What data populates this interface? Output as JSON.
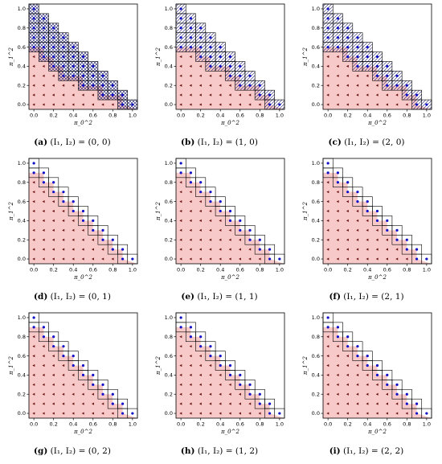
{
  "colors": {
    "region_fill": "#f7c9c9",
    "region_stroke": "#c9c9c9",
    "hatch": "#1a1a6a",
    "point_blue": "#1010c8",
    "point_red": "#6a1414",
    "axis": "#000000"
  },
  "chart_data": [
    {
      "type": "scatter",
      "tag": "(a)",
      "label": "(I_1, I_2) = (0, 0)",
      "xlabel": "π_0^2",
      "ylabel": "π_1^2",
      "xlim": [
        0,
        1
      ],
      "ylim": [
        0,
        1
      ],
      "xticks": [
        "0.0",
        "0.2",
        "0.4",
        "0.6",
        "0.8",
        "1.0"
      ],
      "yticks": [
        "0.0",
        "0.2",
        "0.4",
        "0.6",
        "0.8",
        "1.0"
      ],
      "boundary": [
        [
          0,
          0.6
        ],
        [
          0.1,
          0.6
        ],
        [
          0.1,
          0.5
        ],
        [
          0.2,
          0.5
        ],
        [
          0.2,
          0.4
        ],
        [
          0.3,
          0.4
        ],
        [
          0.3,
          0.3
        ],
        [
          0.4,
          0.3
        ],
        [
          0.4,
          0.3
        ],
        [
          0.5,
          0.3
        ],
        [
          0.5,
          0.2
        ],
        [
          0.6,
          0.2
        ],
        [
          0.6,
          0.2
        ],
        [
          0.7,
          0.2
        ],
        [
          0.7,
          0.1
        ],
        [
          0.8,
          0.1
        ],
        [
          0.8,
          0.1
        ],
        [
          0.9,
          0.1
        ],
        [
          0.9,
          0.0
        ]
      ],
      "hatch_style": "x",
      "single_column_grid": false
    },
    {
      "type": "scatter",
      "tag": "(b)",
      "label": "(I_1, I_2) = (1, 0)",
      "xlabel": "π_0^2",
      "ylabel": "π_1^2",
      "xlim": [
        0,
        1
      ],
      "ylim": [
        0,
        1
      ],
      "xticks": [
        "0.0",
        "0.2",
        "0.4",
        "0.6",
        "0.8",
        "1.0"
      ],
      "yticks": [
        "0.0",
        "0.2",
        "0.4",
        "0.6",
        "0.8",
        "1.0"
      ],
      "boundary": [
        [
          0,
          0.6
        ],
        [
          0.1,
          0.6
        ],
        [
          0.1,
          0.6
        ],
        [
          0.2,
          0.6
        ],
        [
          0.2,
          0.5
        ],
        [
          0.3,
          0.5
        ],
        [
          0.3,
          0.4
        ],
        [
          0.4,
          0.4
        ],
        [
          0.4,
          0.4
        ],
        [
          0.5,
          0.4
        ],
        [
          0.5,
          0.3
        ],
        [
          0.6,
          0.3
        ],
        [
          0.6,
          0.2
        ],
        [
          0.7,
          0.2
        ],
        [
          0.7,
          0.2
        ],
        [
          0.8,
          0.2
        ],
        [
          0.8,
          0.1
        ],
        [
          0.9,
          0.1
        ],
        [
          0.9,
          0.0
        ]
      ],
      "hatch_style": "/",
      "single_column_grid": false
    },
    {
      "type": "scatter",
      "tag": "(c)",
      "label": "(I_1, I_2) = (2, 0)",
      "xlabel": "π_0^2",
      "ylabel": "π_1^2",
      "xlim": [
        0,
        1
      ],
      "ylim": [
        0,
        1
      ],
      "xticks": [
        "0.0",
        "0.2",
        "0.4",
        "0.6",
        "0.8",
        "1.0"
      ],
      "yticks": [
        "0.0",
        "0.2",
        "0.4",
        "0.6",
        "0.8",
        "1.0"
      ],
      "boundary": [
        [
          0,
          0.6
        ],
        [
          0.1,
          0.6
        ],
        [
          0.1,
          0.6
        ],
        [
          0.2,
          0.6
        ],
        [
          0.2,
          0.5
        ],
        [
          0.3,
          0.5
        ],
        [
          0.3,
          0.4
        ],
        [
          0.4,
          0.4
        ],
        [
          0.4,
          0.4
        ],
        [
          0.5,
          0.4
        ],
        [
          0.5,
          0.3
        ],
        [
          0.6,
          0.3
        ],
        [
          0.6,
          0.2
        ],
        [
          0.7,
          0.2
        ],
        [
          0.7,
          0.2
        ],
        [
          0.8,
          0.2
        ],
        [
          0.8,
          0.1
        ],
        [
          0.9,
          0.1
        ],
        [
          0.9,
          0.0
        ]
      ],
      "hatch_style": "/",
      "single_column_grid": false
    },
    {
      "type": "scatter",
      "tag": "(d)",
      "label": "(I_1, I_2) = (0, 1)",
      "xlabel": "π_0^2",
      "ylabel": "π_1^2",
      "xlim": [
        0,
        1
      ],
      "ylim": [
        0,
        1
      ],
      "xticks": [
        "0.0",
        "0.2",
        "0.4",
        "0.6",
        "0.8",
        "1.0"
      ],
      "yticks": [
        "0.0",
        "0.2",
        "0.4",
        "0.6",
        "0.8",
        "1.0"
      ],
      "boundary": [
        [
          0,
          0.9
        ],
        [
          0.1,
          0.9
        ],
        [
          0.1,
          0.8
        ],
        [
          0.2,
          0.8
        ],
        [
          0.2,
          0.7
        ],
        [
          0.3,
          0.7
        ],
        [
          0.3,
          0.6
        ],
        [
          0.4,
          0.6
        ],
        [
          0.4,
          0.5
        ],
        [
          0.5,
          0.5
        ],
        [
          0.5,
          0.4
        ],
        [
          0.6,
          0.4
        ],
        [
          0.6,
          0.3
        ],
        [
          0.7,
          0.3
        ],
        [
          0.7,
          0.2
        ],
        [
          0.8,
          0.2
        ],
        [
          0.8,
          0.1
        ],
        [
          0.9,
          0.1
        ],
        [
          0.9,
          0.0
        ]
      ],
      "hatch_style": "none",
      "single_column_grid": false
    },
    {
      "type": "scatter",
      "tag": "(e)",
      "label": "(I_1, I_2) = (1, 1)",
      "xlabel": "π_0^2",
      "ylabel": "π_1^2",
      "xlim": [
        0,
        1
      ],
      "ylim": [
        0,
        1
      ],
      "xticks": [
        "0.0",
        "0.2",
        "0.4",
        "0.6",
        "0.8",
        "1.0"
      ],
      "yticks": [
        "0.0",
        "0.2",
        "0.4",
        "0.6",
        "0.8",
        "1.0"
      ],
      "boundary": [
        [
          0,
          0.9
        ],
        [
          0.1,
          0.9
        ],
        [
          0.1,
          0.8
        ],
        [
          0.2,
          0.8
        ],
        [
          0.2,
          0.7
        ],
        [
          0.3,
          0.7
        ],
        [
          0.3,
          0.6
        ],
        [
          0.4,
          0.6
        ],
        [
          0.4,
          0.5
        ],
        [
          0.5,
          0.5
        ],
        [
          0.5,
          0.4
        ],
        [
          0.6,
          0.4
        ],
        [
          0.6,
          0.3
        ],
        [
          0.7,
          0.3
        ],
        [
          0.7,
          0.2
        ],
        [
          0.8,
          0.2
        ],
        [
          0.8,
          0.1
        ],
        [
          0.9,
          0.1
        ],
        [
          0.9,
          0.0
        ]
      ],
      "hatch_style": "none",
      "single_column_grid": true
    },
    {
      "type": "scatter",
      "tag": "(f)",
      "label": "(I_1, I_2) = (2, 1)",
      "xlabel": "π_0^2",
      "ylabel": "π_1^2",
      "xlim": [
        0,
        1
      ],
      "ylim": [
        0,
        1
      ],
      "xticks": [
        "0.0",
        "0.2",
        "0.4",
        "0.6",
        "0.8",
        "1.0"
      ],
      "yticks": [
        "0.0",
        "0.2",
        "0.4",
        "0.6",
        "0.8",
        "1.0"
      ],
      "boundary": [
        [
          0,
          0.9
        ],
        [
          0.1,
          0.9
        ],
        [
          0.1,
          0.8
        ],
        [
          0.2,
          0.8
        ],
        [
          0.2,
          0.7
        ],
        [
          0.3,
          0.7
        ],
        [
          0.3,
          0.6
        ],
        [
          0.4,
          0.6
        ],
        [
          0.4,
          0.5
        ],
        [
          0.5,
          0.5
        ],
        [
          0.5,
          0.4
        ],
        [
          0.6,
          0.4
        ],
        [
          0.6,
          0.3
        ],
        [
          0.7,
          0.3
        ],
        [
          0.7,
          0.2
        ],
        [
          0.8,
          0.2
        ],
        [
          0.8,
          0.1
        ],
        [
          0.9,
          0.1
        ],
        [
          0.9,
          0.0
        ]
      ],
      "hatch_style": "none",
      "single_column_grid": false
    },
    {
      "type": "scatter",
      "tag": "(g)",
      "label": "(I_1, I_2) = (0, 2)",
      "xlabel": "π_0^2",
      "ylabel": "π_1^2",
      "xlim": [
        0,
        1
      ],
      "ylim": [
        0,
        1
      ],
      "xticks": [
        "0.0",
        "0.2",
        "0.4",
        "0.6",
        "0.8",
        "1.0"
      ],
      "yticks": [
        "0.0",
        "0.2",
        "0.4",
        "0.6",
        "0.8",
        "1.0"
      ],
      "boundary": [
        [
          0,
          0.9
        ],
        [
          0.1,
          0.9
        ],
        [
          0.1,
          0.8
        ],
        [
          0.2,
          0.8
        ],
        [
          0.2,
          0.7
        ],
        [
          0.3,
          0.7
        ],
        [
          0.3,
          0.6
        ],
        [
          0.4,
          0.6
        ],
        [
          0.4,
          0.5
        ],
        [
          0.5,
          0.5
        ],
        [
          0.5,
          0.4
        ],
        [
          0.6,
          0.4
        ],
        [
          0.6,
          0.3
        ],
        [
          0.7,
          0.3
        ],
        [
          0.7,
          0.2
        ],
        [
          0.8,
          0.2
        ],
        [
          0.8,
          0.1
        ],
        [
          0.9,
          0.1
        ],
        [
          0.9,
          0.0
        ]
      ],
      "hatch_style": "none",
      "single_column_grid": false
    },
    {
      "type": "scatter",
      "tag": "(h)",
      "label": "(I_1, I_2) = (1, 2)",
      "xlabel": "π_0^2",
      "ylabel": "π_1^2",
      "xlim": [
        0,
        1
      ],
      "ylim": [
        0,
        1
      ],
      "xticks": [
        "0.0",
        "0.2",
        "0.4",
        "0.6",
        "0.8",
        "1.0"
      ],
      "yticks": [
        "0.0",
        "0.2",
        "0.4",
        "0.6",
        "0.8",
        "1.0"
      ],
      "boundary": [
        [
          0,
          0.9
        ],
        [
          0.1,
          0.9
        ],
        [
          0.1,
          0.8
        ],
        [
          0.2,
          0.8
        ],
        [
          0.2,
          0.7
        ],
        [
          0.3,
          0.7
        ],
        [
          0.3,
          0.6
        ],
        [
          0.4,
          0.6
        ],
        [
          0.4,
          0.5
        ],
        [
          0.5,
          0.5
        ],
        [
          0.5,
          0.4
        ],
        [
          0.6,
          0.4
        ],
        [
          0.6,
          0.3
        ],
        [
          0.7,
          0.3
        ],
        [
          0.7,
          0.2
        ],
        [
          0.8,
          0.2
        ],
        [
          0.8,
          0.1
        ],
        [
          0.9,
          0.1
        ],
        [
          0.9,
          0.0
        ]
      ],
      "hatch_style": "none",
      "single_column_grid": false
    },
    {
      "type": "scatter",
      "tag": "(i)",
      "label": "(I_1, I_2) = (2, 2)",
      "xlabel": "π_0^2",
      "ylabel": "π_1^2",
      "xlim": [
        0,
        1
      ],
      "ylim": [
        0,
        1
      ],
      "xticks": [
        "0.0",
        "0.2",
        "0.4",
        "0.6",
        "0.8",
        "1.0"
      ],
      "yticks": [
        "0.0",
        "0.2",
        "0.4",
        "0.6",
        "0.8",
        "1.0"
      ],
      "boundary": [
        [
          0,
          0.9
        ],
        [
          0.1,
          0.9
        ],
        [
          0.1,
          0.8
        ],
        [
          0.2,
          0.8
        ],
        [
          0.2,
          0.7
        ],
        [
          0.3,
          0.7
        ],
        [
          0.3,
          0.6
        ],
        [
          0.4,
          0.6
        ],
        [
          0.4,
          0.5
        ],
        [
          0.5,
          0.5
        ],
        [
          0.5,
          0.4
        ],
        [
          0.6,
          0.4
        ],
        [
          0.6,
          0.3
        ],
        [
          0.7,
          0.3
        ],
        [
          0.7,
          0.2
        ],
        [
          0.8,
          0.2
        ],
        [
          0.8,
          0.1
        ],
        [
          0.9,
          0.1
        ],
        [
          0.9,
          0.0
        ]
      ],
      "hatch_style": "none",
      "single_column_grid": false
    }
  ],
  "captions": [
    {
      "tag": "(a)",
      "text": "(I₁, I₂) = (0, 0)"
    },
    {
      "tag": "(b)",
      "text": "(I₁, I₂) = (1, 0)"
    },
    {
      "tag": "(c)",
      "text": "(I₁, I₂) = (2, 0)"
    },
    {
      "tag": "(d)",
      "text": "(I₁, I₂) = (0, 1)"
    },
    {
      "tag": "(e)",
      "text": "(I₁, I₂) = (1, 1)"
    },
    {
      "tag": "(f)",
      "text": "(I₁, I₂) = (2, 1)"
    },
    {
      "tag": "(g)",
      "text": "(I₁, I₂) = (0, 2)"
    },
    {
      "tag": "(h)",
      "text": "(I₁, I₂) = (1, 2)"
    },
    {
      "tag": "(i)",
      "text": "(I₁, I₂) = (2, 2)"
    }
  ]
}
